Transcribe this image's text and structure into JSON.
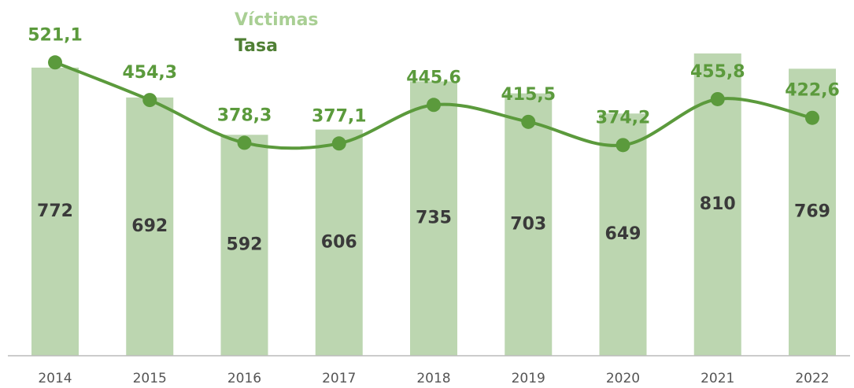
{
  "chart_data": {
    "type": "bar-line",
    "categories": [
      "2014",
      "2015",
      "2016",
      "2017",
      "2018",
      "2019",
      "2020",
      "2021",
      "2022"
    ],
    "series": [
      {
        "name": "Víctimas",
        "type": "bar",
        "color": "#bcd6b0",
        "values": [
          772,
          692,
          592,
          606,
          735,
          703,
          649,
          810,
          769
        ]
      },
      {
        "name": "Tasa",
        "type": "line",
        "axis": "y2",
        "color": "#5b9a3c",
        "values": [
          521.1,
          454.3,
          378.3,
          377.1,
          445.6,
          415.5,
          374.2,
          455.8,
          422.6
        ],
        "value_labels": [
          "521,1",
          "454,3",
          "378,3",
          "377,1",
          "445,6",
          "415,5",
          "374,2",
          "455,8",
          "422,6"
        ]
      }
    ],
    "ylim": [
      0,
      911
    ],
    "y2lim": [
      0,
      604
    ],
    "legend": "top"
  }
}
